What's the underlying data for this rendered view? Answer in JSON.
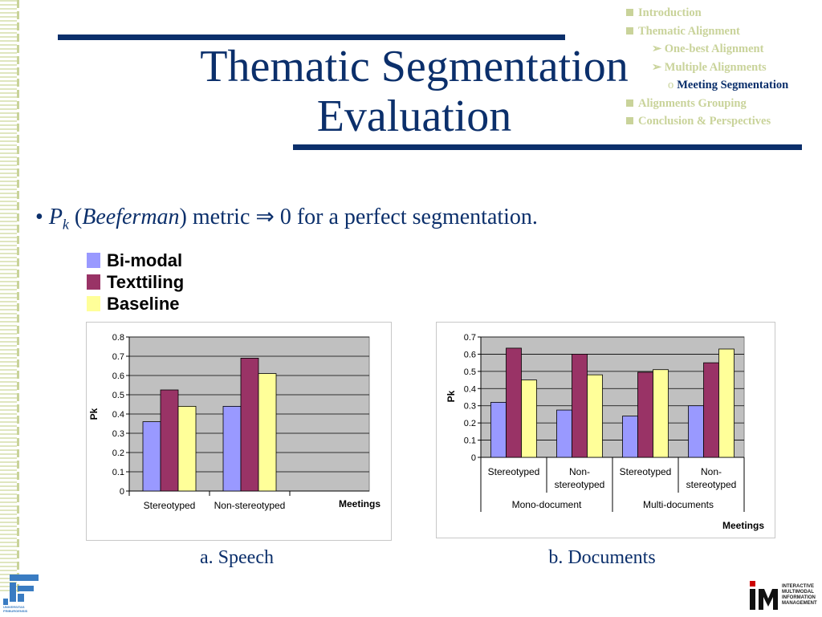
{
  "slide": {
    "title_line1": "Thematic Segmentation",
    "title_line2": "Evaluation",
    "bullet": {
      "dot": "•",
      "P": "P",
      "k": "k",
      "open_paren": " (",
      "beeferman": "Beeferman",
      "rest": ") metric ⇒ 0 for a perfect segmentation."
    },
    "captions": {
      "speech": "a. Speech",
      "documents": "b. Documents"
    }
  },
  "outline": {
    "introduction": "Introduction",
    "thematic_alignment": "Thematic Alignment",
    "one_best": "One-best Alignment",
    "multiple": "Multiple Alignments",
    "meeting_bullet": "o",
    "meeting": "Meeting Segmentation",
    "grouping": "Alignments Grouping",
    "conclusion": "Conclusion & Perspectives",
    "arrow": "➢"
  },
  "legend": [
    {
      "name": "Bi-modal",
      "color": "#9999ff"
    },
    {
      "name": "Texttiling",
      "color": "#993366"
    },
    {
      "name": "Baseline",
      "color": "#ffff99"
    }
  ],
  "logos": {
    "left_text": "UNIVERSITAS FRIBURGENSIS",
    "right_mark": "IM",
    "right_text": "INTERACTIVE MULTIMODAL INFORMATION MANAGEMENT"
  },
  "chart_data": [
    {
      "type": "bar",
      "ylabel": "Pk",
      "xlabel": "Meetings",
      "ylim": [
        0,
        0.8
      ],
      "yticks": [
        "0",
        "0.1",
        "0.2",
        "0.3",
        "0.4",
        "0.5",
        "0.6",
        "0.7",
        "0.8"
      ],
      "categories": [
        "Stereotyped",
        "Non-stereotyped"
      ],
      "series": [
        {
          "name": "Bi-modal",
          "values": [
            0.36,
            0.44
          ]
        },
        {
          "name": "Texttiling",
          "values": [
            0.525,
            0.69
          ]
        },
        {
          "name": "Baseline",
          "values": [
            0.44,
            0.61
          ]
        }
      ],
      "grid": true,
      "plot_background": "#c0c0c0"
    },
    {
      "type": "bar",
      "ylabel": "Pk",
      "xlabel": "Meetings",
      "ylim": [
        0,
        0.7
      ],
      "yticks": [
        "0",
        "0.1",
        "0.2",
        "0.3",
        "0.4",
        "0.5",
        "0.6",
        "0.7"
      ],
      "categories": [
        "Stereotyped",
        "Non-\nstereotyped",
        "Stereotyped",
        "Non-\nstereotyped"
      ],
      "groups": [
        "Mono-document",
        "Multi-documents"
      ],
      "series": [
        {
          "name": "Bi-modal",
          "values": [
            0.32,
            0.275,
            0.24,
            0.3
          ]
        },
        {
          "name": "Texttiling",
          "values": [
            0.635,
            0.6,
            0.495,
            0.55
          ]
        },
        {
          "name": "Baseline",
          "values": [
            0.45,
            0.48,
            0.51,
            0.63
          ]
        }
      ],
      "grid": true,
      "plot_background": "#c0c0c0"
    }
  ]
}
